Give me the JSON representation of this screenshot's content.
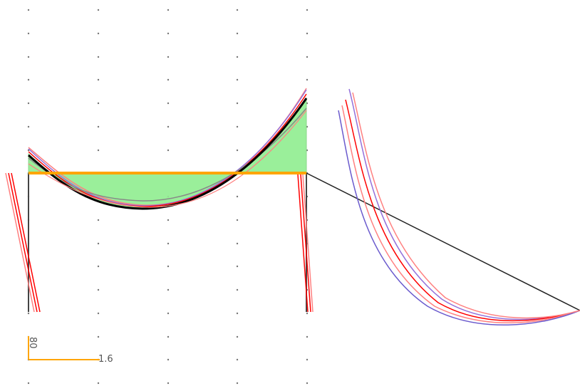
{
  "colors": {
    "background": "#ffffff",
    "grid_dot": "#777777",
    "member": "#444444",
    "fill": "#90ee90",
    "fill_stroke": "#7fd37f",
    "beam": "#ffa500",
    "scale": "#ffa500",
    "primary_curve": "#000000",
    "red_curve": "#ff0000",
    "pink_curve": "#ff8080",
    "blue_curve": "#6a5acd",
    "purple_curve": "#9370db",
    "gray_curve": "#888888",
    "link_line": "#222222"
  },
  "scale_bar": {
    "value_label": "1.6",
    "vertical_label": "80"
  }
}
